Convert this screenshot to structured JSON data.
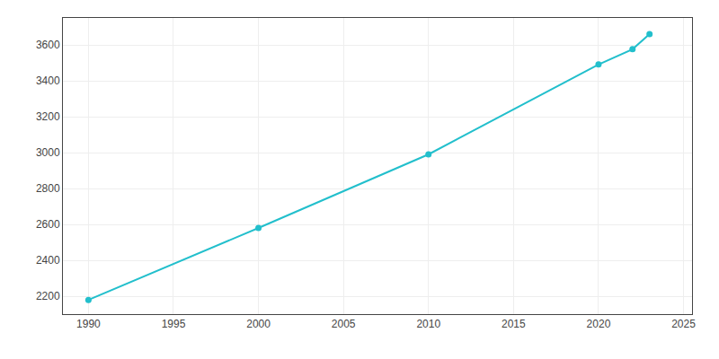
{
  "chart_data": {
    "type": "line",
    "x": [
      1990,
      2000,
      2010,
      2020,
      2022,
      2023
    ],
    "values": [
      2179,
      2580,
      2990,
      3491,
      3576,
      3660
    ],
    "color": "#22BFCC",
    "marker": "circle",
    "line_style": "solid",
    "xlim": [
      1988.5,
      2025.5
    ],
    "ylim": [
      2100,
      3750
    ],
    "xticks": [
      1990,
      1995,
      2000,
      2005,
      2010,
      2015,
      2020,
      2025
    ],
    "yticks": [
      2200,
      2400,
      2600,
      2800,
      3000,
      3200,
      3400,
      3600
    ],
    "grid": true
  }
}
